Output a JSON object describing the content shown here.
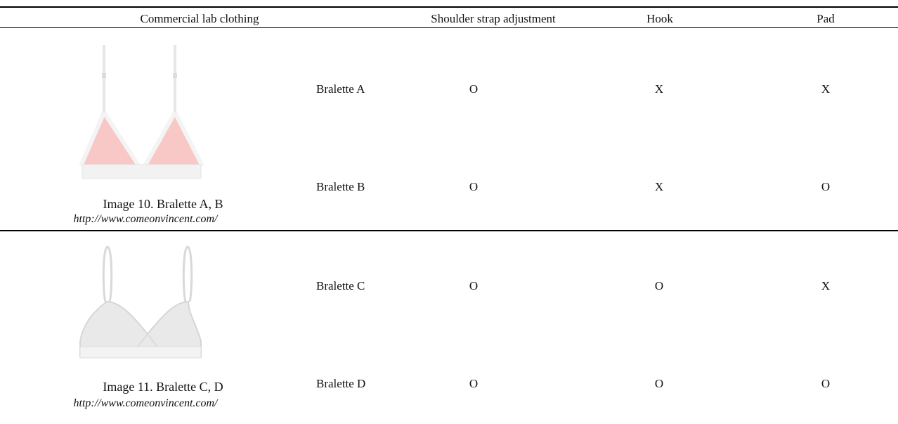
{
  "table": {
    "headers": [
      "Commercial lab clothing",
      "Shoulder strap adjustment",
      "Hook",
      "Pad"
    ],
    "groups": [
      {
        "caption": "Image 10. Bralette A, B",
        "url": "http://www.comeonvincent.com/",
        "rows": [
          {
            "name": "Bralette A",
            "strap": "O",
            "hook": "X",
            "pad": "X"
          },
          {
            "name": "Bralette B",
            "strap": "O",
            "hook": "X",
            "pad": "O"
          }
        ]
      },
      {
        "caption": "Image 11. Bralette C, D",
        "url": "http://www.comeonvincent.com/",
        "rows": [
          {
            "name": "Bralette C",
            "strap": "O",
            "hook": "O",
            "pad": "X"
          },
          {
            "name": "Bralette D",
            "strap": "O",
            "hook": "O",
            "pad": "O"
          }
        ]
      }
    ]
  },
  "colors": {
    "pink_fabric": "#f8c8c6",
    "white_trim": "#f4f4f4",
    "grey_fabric": "#e8e9e8"
  }
}
